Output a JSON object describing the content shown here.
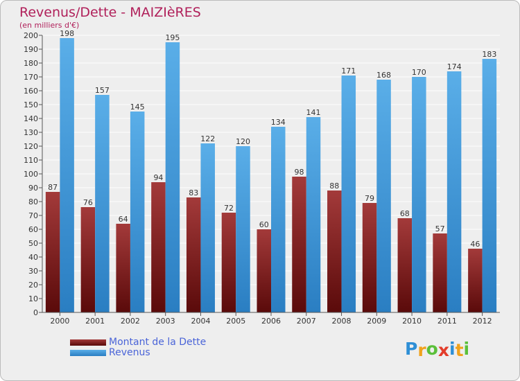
{
  "title": "Revenus/Dette - MAIZIèRES",
  "subtitle": "(en milliers d'€)",
  "logo": {
    "text": "Proxiti",
    "colors": [
      "#2e8fd6",
      "#f0a21d",
      "#5bbf3a",
      "#e33c2a",
      "#2e8fd6",
      "#f0a21d",
      "#5bbf3a"
    ]
  },
  "legend": {
    "dette_label": "Montant de la Dette",
    "revenus_label": "Revenus"
  },
  "colors": {
    "dette_top": "#a33a3a",
    "dette_bottom": "#5a0a0a",
    "revenus_top": "#5aaee8",
    "revenus_bottom": "#2a7ec2",
    "background": "#eeeeee",
    "title": "#b0205a",
    "legend_text": "#4a64d8"
  },
  "chart_data": {
    "type": "bar",
    "title": "Revenus/Dette - MAIZIèRES",
    "subtitle": "(en milliers d'€)",
    "categories": [
      "2000",
      "2001",
      "2002",
      "2003",
      "2004",
      "2005",
      "2006",
      "2007",
      "2008",
      "2009",
      "2010",
      "2011",
      "2012"
    ],
    "series": [
      {
        "name": "Montant de la Dette",
        "values": [
          87,
          76,
          64,
          94,
          83,
          72,
          60,
          98,
          88,
          79,
          68,
          57,
          46
        ]
      },
      {
        "name": "Revenus",
        "values": [
          198,
          157,
          145,
          195,
          122,
          120,
          134,
          141,
          171,
          168,
          170,
          174,
          183
        ]
      }
    ],
    "ylim": [
      0,
      200
    ],
    "yticks": [
      0,
      10,
      20,
      30,
      40,
      50,
      60,
      70,
      80,
      90,
      100,
      110,
      120,
      130,
      140,
      150,
      160,
      170,
      180,
      190,
      200
    ],
    "grid": true,
    "legend_position": "bottom-left"
  }
}
